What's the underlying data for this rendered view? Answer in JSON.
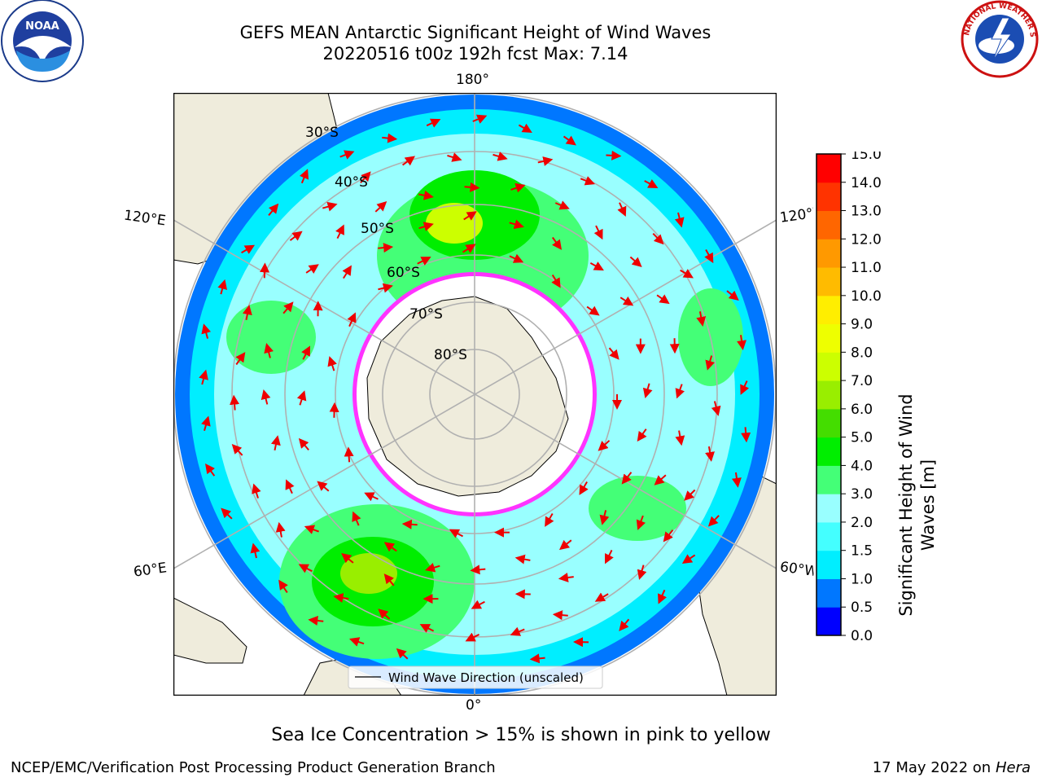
{
  "header": {
    "title_line1": "GEFS MEAN Antarctic Significant Height of Wind Waves",
    "title_line2": "20220516 t00z 192h fcst   Max: 7.14"
  },
  "map": {
    "projection": "south-polar-stereographic",
    "latitude_labels": [
      "30°S",
      "40°S",
      "50°S",
      "60°S",
      "70°S",
      "80°S"
    ],
    "longitude_labels": {
      "top": "180°",
      "bottom": "0°",
      "upper_left": "120°E",
      "upper_right": "120°W",
      "lower_left": "60°E",
      "lower_right": "60°W"
    },
    "legend_label": "Wind Wave Direction (unscaled)",
    "colors": {
      "land": "#efecdc",
      "ice_edge": "#ff33ff",
      "arrows": "#ee0000",
      "grid": "#b0b0b0"
    }
  },
  "colorbar": {
    "title": "Significant Height of Wind Waves [m]",
    "title_line1": "Significant Height of Wind",
    "title_line2": "Waves [m]",
    "ticks": [
      "0.0",
      "0.5",
      "1.0",
      "1.5",
      "2.0",
      "3.0",
      "4.0",
      "5.0",
      "6.0",
      "7.0",
      "8.0",
      "9.0",
      "10.0",
      "11.0",
      "12.0",
      "13.0",
      "14.0",
      "15.0"
    ],
    "bins": [
      "#0000ff",
      "#0077ff",
      "#00eeff",
      "#44ffff",
      "#99ffff",
      "#44ff77",
      "#00ee00",
      "#44dd00",
      "#99ee00",
      "#ccff00",
      "#eeff00",
      "#ffee00",
      "#ffbb00",
      "#ff9900",
      "#ff6600",
      "#ff3300",
      "#ff0000"
    ]
  },
  "note": "Sea Ice Concentration > 15% is shown in pink to yellow",
  "footer": {
    "left": "NCEP/EMC/Verification Post Processing Product Generation Branch",
    "right_date": "17 May 2022 on",
    "right_host": "Hera"
  },
  "logos": {
    "noaa_text": "NOAA",
    "nws_text": "NATIONAL WEATHER SERVICE"
  }
}
